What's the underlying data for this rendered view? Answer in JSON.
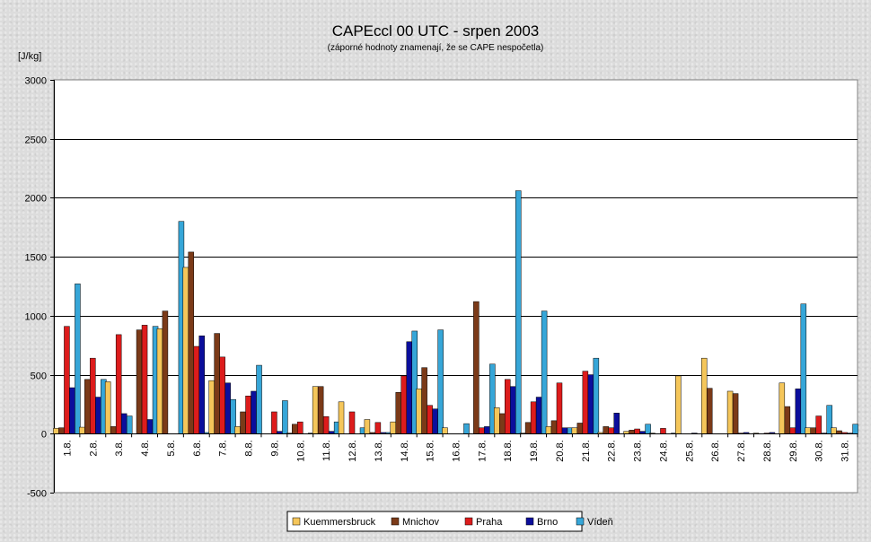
{
  "chart_data": {
    "type": "bar",
    "title": "CAPEccl 00 UTC - srpen 2003",
    "subtitle": "(záporné hodnoty znamenají, že se CAPE nespočetla)",
    "ylabel": "[J/kg]",
    "xlabel": "",
    "ylim": [
      -500,
      3000
    ],
    "yticks": [
      "-500",
      "0",
      "500",
      "1000",
      "1500",
      "2000",
      "2500",
      "3000"
    ],
    "grid": true,
    "legend_position": "bottom",
    "categories": [
      "1.8.",
      "2.8.",
      "3.8.",
      "4.8.",
      "5.8.",
      "6.8.",
      "7.8.",
      "8.8.",
      "9.8.",
      "10.8.",
      "11.8.",
      "12.8.",
      "13.8.",
      "14.8.",
      "15.8.",
      "16.8.",
      "17.8.",
      "18.8.",
      "19.8.",
      "20.8.",
      "21.8.",
      "22.8.",
      "23.8.",
      "24.8.",
      "25.8.",
      "26.8.",
      "27.8.",
      "28.8.",
      "29.8.",
      "30.8.",
      "31.8."
    ],
    "series": [
      {
        "name": "Kuemmersbruck",
        "color": "#f5c65a",
        "values": [
          45,
          55,
          440,
          0,
          890,
          1410,
          450,
          60,
          0,
          5,
          400,
          270,
          120,
          100,
          380,
          50,
          0,
          220,
          5,
          60,
          50,
          10,
          20,
          5,
          490,
          640,
          360,
          5,
          430,
          50,
          50
        ]
      },
      {
        "name": "Mnichov",
        "color": "#7b3a18",
        "values": [
          50,
          460,
          60,
          880,
          1040,
          1540,
          850,
          185,
          0,
          80,
          400,
          0,
          10,
          350,
          560,
          0,
          1120,
          170,
          95,
          110,
          90,
          60,
          30,
          0,
          0,
          385,
          340,
          0,
          230,
          50,
          25
        ]
      },
      {
        "name": "Praha",
        "color": "#dd1c1c",
        "values": [
          910,
          640,
          840,
          920,
          0,
          740,
          650,
          320,
          185,
          100,
          145,
          185,
          95,
          490,
          240,
          0,
          50,
          460,
          270,
          430,
          530,
          50,
          40,
          45,
          0,
          0,
          5,
          5,
          50,
          150,
          10
        ]
      },
      {
        "name": "Brno",
        "color": "#0b0e9c",
        "values": [
          390,
          310,
          170,
          120,
          0,
          830,
          430,
          360,
          20,
          0,
          20,
          0,
          10,
          780,
          210,
          0,
          60,
          400,
          310,
          50,
          500,
          175,
          20,
          0,
          5,
          0,
          10,
          10,
          380,
          5,
          5
        ]
      },
      {
        "name": "Vídeň",
        "color": "#36a6d8",
        "values": [
          1270,
          460,
          150,
          910,
          1800,
          10,
          290,
          580,
          280,
          5,
          100,
          50,
          10,
          870,
          880,
          85,
          590,
          2060,
          1040,
          50,
          640,
          0,
          80,
          5,
          0,
          0,
          0,
          0,
          1100,
          240,
          80
        ]
      }
    ]
  }
}
